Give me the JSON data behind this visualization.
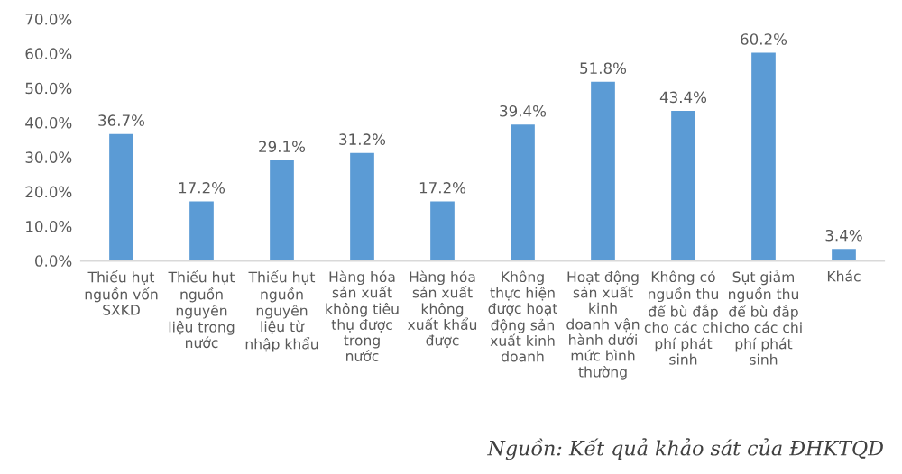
{
  "chart_data": {
    "type": "bar",
    "categories": [
      "Thiếu hụt\nnguồn vốn\nSXKD",
      "Thiếu hụt\nnguồn\nnguyên\nliệu trong\nnước",
      "Thiếu hụt\nnguồn\nnguyên\nliệu từ\nnhập khẩu",
      "Hàng hóa\nsản xuất\nkhông tiêu\nthụ được\ntrong\nnước",
      "Hàng hóa\nsản xuất\nkhông\nxuất khẩu\nđược",
      "Không\nthực hiện\nđược hoạt\nđộng sản\nxuất kinh\ndoanh",
      "Hoạt động\nsản xuất\nkinh\ndoanh vận\nhành dưới\nmức bình\nthường",
      "Không có\nnguồn thu\nđể bù đắp\ncho các chi\nphí phát\nsinh",
      "Sụt giảm\nnguồn thu\nđể bù đắp\ncho các chi\nphí phát\nsinh",
      "Khác"
    ],
    "values": [
      36.7,
      17.2,
      29.1,
      31.2,
      17.2,
      39.4,
      51.8,
      43.4,
      60.2,
      3.4
    ],
    "value_labels": [
      "36.7%",
      "17.2%",
      "29.1%",
      "31.2%",
      "17.2%",
      "39.4%",
      "51.8%",
      "43.4%",
      "60.2%",
      "3.4%"
    ],
    "color": "#5b9bd5",
    "ylim": [
      0,
      70
    ],
    "yticks": [
      {
        "value": 0,
        "label": "0.0%"
      },
      {
        "value": 10,
        "label": "10.0%"
      },
      {
        "value": 20,
        "label": "20.0%"
      },
      {
        "value": 30,
        "label": "30.0%"
      },
      {
        "value": 40,
        "label": "40.0%"
      },
      {
        "value": 50,
        "label": "50.0%"
      },
      {
        "value": 60,
        "label": "60.0%"
      },
      {
        "value": 70,
        "label": "70.0%"
      }
    ],
    "grid": false,
    "annotations": [
      "Nguồn: Kết quả khảo sát của ĐHKTQD"
    ]
  }
}
